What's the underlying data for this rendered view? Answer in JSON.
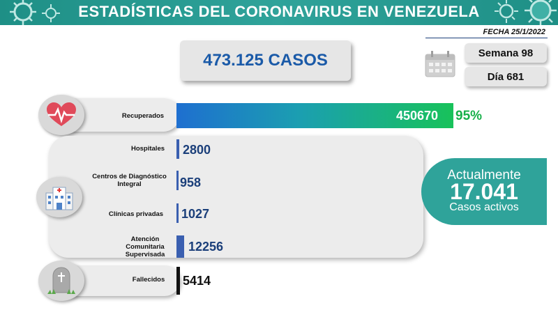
{
  "header": {
    "title": "ESTADÍSTICAS DEL CORONAVIRUS EN VENEZUELA",
    "date": "FECHA 25/1/2022"
  },
  "summary": {
    "total_cases": "473.125 CASOS",
    "week": "Semana 98",
    "day": "Día 681"
  },
  "recovered": {
    "label": "Recuperados",
    "value": "450670",
    "percent": "95%"
  },
  "health_centers": [
    {
      "label": "Hospitales",
      "value": "2800"
    },
    {
      "label": "Centros de Diagnóstico Integral",
      "value": "958"
    },
    {
      "label": "Clínicas privadas",
      "value": "1027"
    },
    {
      "label": "Atención Comunitaria Supervisada",
      "value": "12256"
    }
  ],
  "active": {
    "line1": "Actualmente",
    "number": "17.041",
    "line3": "Casos activos"
  },
  "deaths": {
    "label": "Fallecidos",
    "value": "5414"
  },
  "colors": {
    "banner": "#1e8f86",
    "accent_blue": "#1a5aa8",
    "green": "#18b04a",
    "teal_box": "#2fa39a",
    "mini_bar": "#3a5fb0"
  },
  "icons": [
    "virus-icon",
    "calendar-icon",
    "heart-pulse-icon",
    "hospital-icon",
    "tombstone-icon"
  ]
}
